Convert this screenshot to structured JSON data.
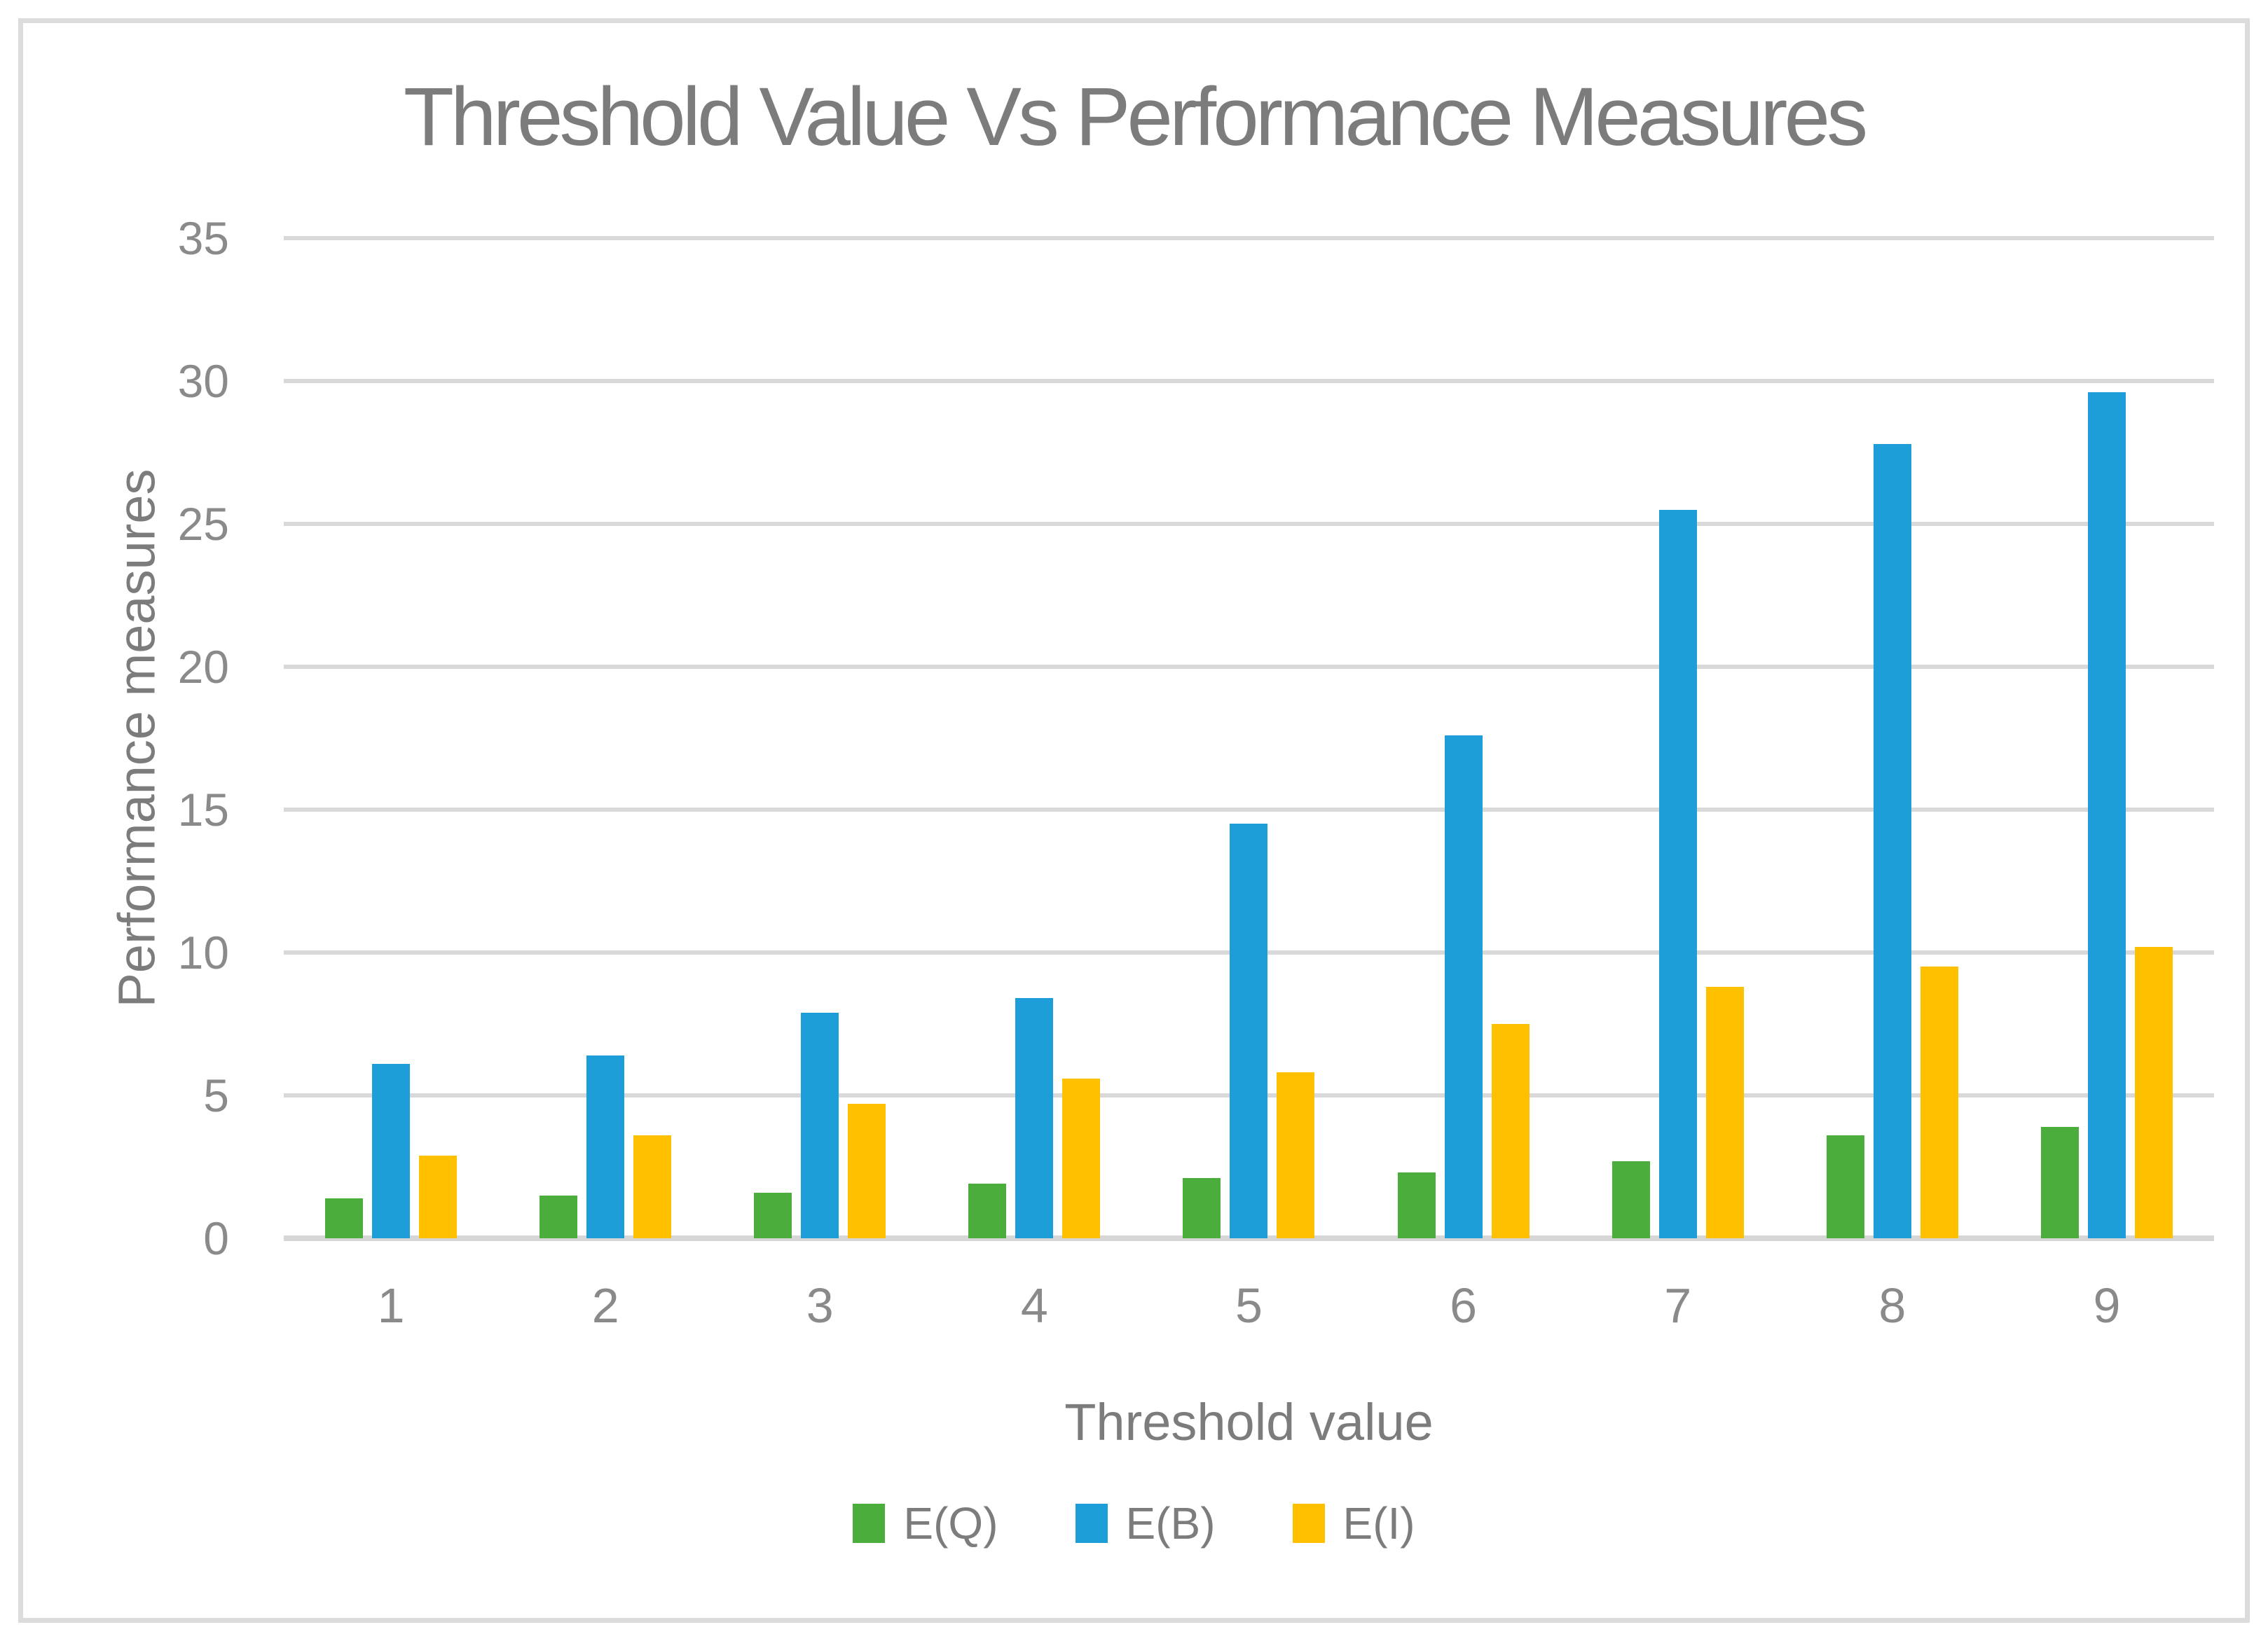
{
  "chart_data": {
    "type": "bar",
    "title": "Threshold Value Vs Performance Measures",
    "xlabel": "Threshold value",
    "ylabel": "Performance measures",
    "categories": [
      "1",
      "2",
      "3",
      "4",
      "5",
      "6",
      "7",
      "8",
      "9"
    ],
    "yticks": [
      0,
      5,
      10,
      15,
      20,
      25,
      30,
      35
    ],
    "ylim": [
      0,
      35
    ],
    "grid": true,
    "legend_position": "bottom",
    "series": [
      {
        "name": "E(Q)",
        "color": "#4aad3c",
        "values": [
          1.4,
          1.5,
          1.6,
          1.9,
          2.1,
          2.3,
          2.7,
          3.6,
          3.9
        ]
      },
      {
        "name": "E(B)",
        "color": "#1e9ed9",
        "values": [
          6.1,
          6.4,
          7.9,
          8.4,
          14.5,
          17.6,
          25.5,
          27.8,
          29.6
        ]
      },
      {
        "name": "E(I)",
        "color": "#ffc000",
        "values": [
          2.9,
          3.6,
          4.7,
          5.6,
          5.8,
          7.5,
          8.8,
          9.5,
          10.2
        ]
      }
    ],
    "colors": {
      "gridline": "#d9d9d9",
      "axis_text": "#8a8a8a",
      "title_text": "#7c7c7c",
      "border": "#dcdcdc",
      "background": "#ffffff"
    }
  }
}
